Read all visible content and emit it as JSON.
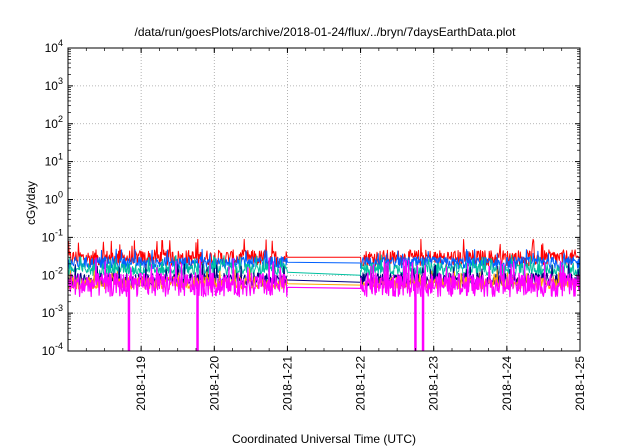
{
  "chart_data": {
    "type": "line",
    "title": "/data/run/goesPlots/archive/2018-01-24/flux/../bryn/7daysEarthData.plot",
    "xlabel": "Coordinated Universal Time (UTC)",
    "ylabel": "cGy/day",
    "yscale": "log",
    "ylim": [
      0.0001,
      10000
    ],
    "xlim": [
      "2018-01-18 00:00",
      "2018-01-25 00:00"
    ],
    "x_ticks": [
      "2018-1-19",
      "2018-1-20",
      "2018-1-21",
      "2018-1-22",
      "2018-1-23",
      "2018-1-24",
      "2018-1-25"
    ],
    "y_ticks": [
      {
        "value": 0.0001,
        "base": "10",
        "exp": "-4"
      },
      {
        "value": 0.001,
        "base": "10",
        "exp": "-3"
      },
      {
        "value": 0.01,
        "base": "10",
        "exp": "-2"
      },
      {
        "value": 0.1,
        "base": "10",
        "exp": "-1"
      },
      {
        "value": 1,
        "base": "10",
        "exp": "0"
      },
      {
        "value": 10,
        "base": "10",
        "exp": "1"
      },
      {
        "value": 100,
        "base": "10",
        "exp": "2"
      },
      {
        "value": 1000,
        "base": "10",
        "exp": "3"
      },
      {
        "value": 10000,
        "base": "10",
        "exp": "4"
      }
    ],
    "grid": true,
    "data_gap": [
      "2018-01-21 00:00",
      "2018-01-22 00:00"
    ],
    "series": [
      {
        "color": "#ff0000",
        "base": 0.03,
        "peak": 0.09,
        "gap_start": 0.03,
        "gap_end": 0.03
      },
      {
        "color": "#0060ff",
        "base": 0.022,
        "peak": 0.05,
        "gap_start": 0.022,
        "gap_end": 0.021
      },
      {
        "color": "#00c0a0",
        "base": 0.015,
        "peak": 0.035,
        "gap_start": 0.012,
        "gap_end": 0.01
      },
      {
        "color": "#000080",
        "base": 0.008,
        "peak": 0.02,
        "gap_start": 0.0075,
        "gap_end": 0.0065
      },
      {
        "color": "#ffa500",
        "base": 0.0065,
        "peak": 0.015,
        "gap_start": 0.006,
        "gap_end": 0.0055
      },
      {
        "color": "#ff00ff",
        "base": 0.006,
        "peak": 0.03,
        "gap_start": 0.0048,
        "gap_end": 0.0045
      }
    ],
    "dropouts": [
      {
        "series_color": "#ff00ff",
        "x": "2018-01-18 20:00",
        "value": 0.0001
      },
      {
        "series_color": "#ff00ff",
        "x": "2018-01-19 18:30",
        "value": 0.0001
      },
      {
        "series_color": "#ff00ff",
        "x": "2018-01-22 18:00",
        "value": 0.0001
      },
      {
        "series_color": "#ff00ff",
        "x": "2018-01-22 20:30",
        "value": 0.0001
      }
    ]
  }
}
